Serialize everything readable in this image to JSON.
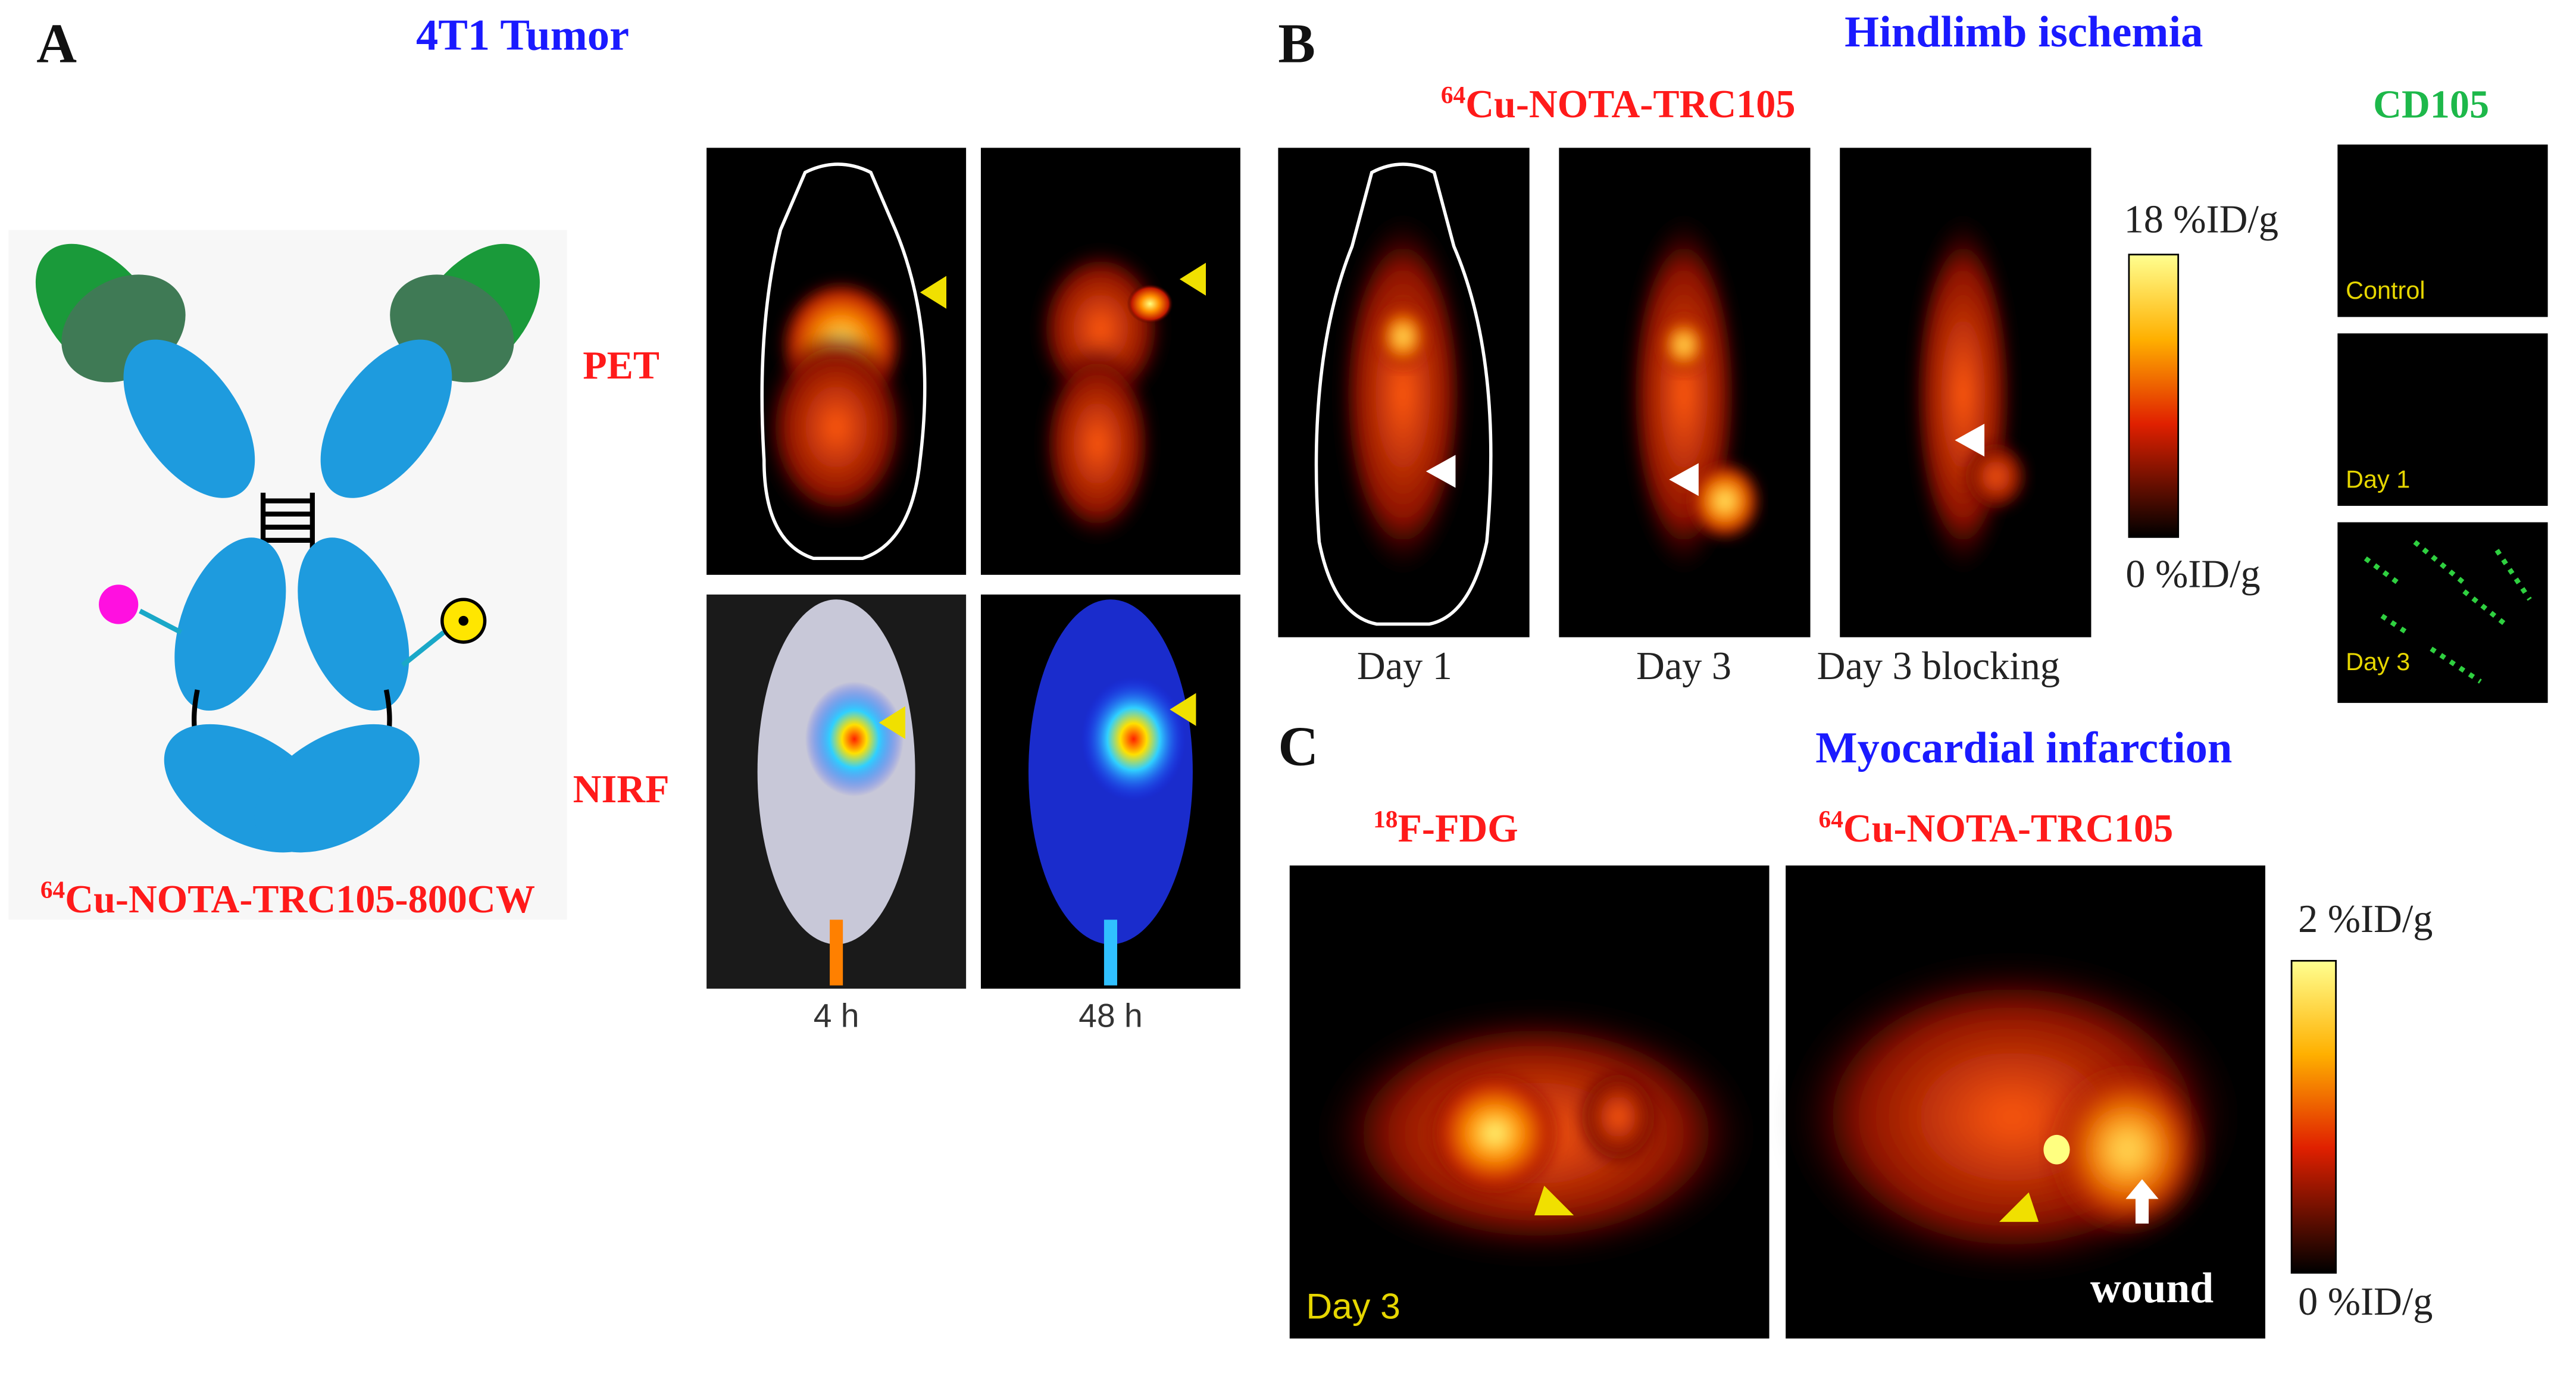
{
  "panel_a": {
    "label": "A",
    "title": "4T1 Tumor",
    "probe": {
      "isotope": "64",
      "name": "Cu-NOTA-TRC105-800CW"
    },
    "rows": [
      "PET",
      "NIRF"
    ],
    "times": [
      "4 h",
      "48 h"
    ]
  },
  "panel_b": {
    "label": "B",
    "title": "Hindlimb ischemia",
    "probe": {
      "isotope": "64",
      "name": "Cu-NOTA-TRC105"
    },
    "days": [
      "Day 1",
      "Day 3",
      "Day 3 blocking"
    ],
    "scale": [
      "18 %ID/g",
      "0 %ID/g"
    ],
    "stain": "CD105",
    "stain_labels": [
      "Control",
      "Day 1",
      "Day 3"
    ]
  },
  "panel_c": {
    "label": "C",
    "title": "Myocardial infarction",
    "probes": [
      {
        "isotope": "18",
        "name": "F-FDG"
      },
      {
        "isotope": "64",
        "name": "Cu-NOTA-TRC105"
      }
    ],
    "day": "Day 3",
    "wound": "wound",
    "scale": [
      "2 %ID/g",
      "0 %ID/g"
    ]
  }
}
